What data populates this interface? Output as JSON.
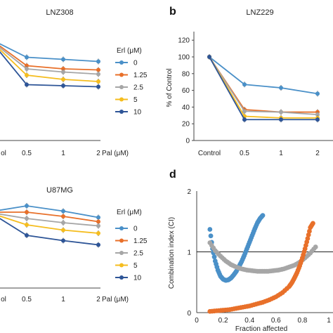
{
  "figure": {
    "panel_b_letter": "b",
    "panel_d_letter": "d",
    "palette": {
      "0": "#4a90c8",
      "1.25": "#e8702a",
      "2.5": "#a6a6a6",
      "5": "#f5bd1f",
      "10": "#2e5597",
      "axis": "#444444"
    }
  },
  "chart_data": [
    {
      "panel": "a-top",
      "type": "line",
      "title": "LNZ308",
      "categories": [
        "ol",
        "0.5",
        "1",
        "2"
      ],
      "x_axis_label": "Pal (μM)",
      "legend_title": "Erl (μM)",
      "legend_position": "right",
      "series": [
        {
          "name": "0",
          "values": [
            null,
            79,
            77,
            75
          ],
          "color": "#4a90c8"
        },
        {
          "name": "1.25",
          "values": [
            null,
            71,
            68,
            67
          ],
          "color": "#e8702a"
        },
        {
          "name": "2.5",
          "values": [
            null,
            68,
            65,
            63
          ],
          "color": "#a6a6a6"
        },
        {
          "name": "5",
          "values": [
            null,
            62,
            58,
            56
          ],
          "color": "#f5bd1f"
        },
        {
          "name": "10",
          "values": [
            null,
            53,
            52,
            51
          ],
          "color": "#2e5597"
        }
      ]
    },
    {
      "panel": "b",
      "type": "line",
      "title": "LNZ229",
      "categories": [
        "Control",
        "0.5",
        "1",
        "2"
      ],
      "y_axis_label": "% of Control",
      "y_ticks": [
        "0",
        "20",
        "40",
        "60",
        "80",
        "100",
        "120"
      ],
      "ylim": [
        0,
        120
      ],
      "series": [
        {
          "name": "0",
          "values": [
            100,
            67,
            63,
            56
          ],
          "color": "#4a90c8"
        },
        {
          "name": "1.25",
          "values": [
            100,
            37,
            34,
            34
          ],
          "color": "#e8702a"
        },
        {
          "name": "2.5",
          "values": [
            100,
            35,
            34,
            31
          ],
          "color": "#a6a6a6"
        },
        {
          "name": "5",
          "values": [
            100,
            29,
            27,
            27
          ],
          "color": "#f5bd1f"
        },
        {
          "name": "10",
          "values": [
            100,
            25,
            25,
            25
          ],
          "color": "#2e5597"
        }
      ]
    },
    {
      "panel": "c",
      "type": "line",
      "title": "U87MG",
      "categories": [
        "ol",
        "0.5",
        "1",
        "2"
      ],
      "x_axis_label": "Pal (μM)",
      "legend_title": "Erl (μM)",
      "legend_position": "right",
      "series": [
        {
          "name": "0",
          "values": [
            null,
            78,
            73,
            67
          ],
          "color": "#4a90c8"
        },
        {
          "name": "1.25",
          "values": [
            null,
            72,
            68,
            63
          ],
          "color": "#e8702a"
        },
        {
          "name": "2.5",
          "values": [
            null,
            66,
            62,
            59
          ],
          "color": "#a6a6a6"
        },
        {
          "name": "5",
          "values": [
            null,
            60,
            55,
            52
          ],
          "color": "#f5bd1f"
        },
        {
          "name": "10",
          "values": [
            null,
            50,
            45,
            41
          ],
          "color": "#2e5597"
        }
      ]
    },
    {
      "panel": "d",
      "type": "scatter",
      "x_axis_label": "Fraction affected",
      "y_axis_label": "Combination index (CI)",
      "x_ticks": [
        "0",
        "0.2",
        "0.4",
        "0.6",
        "0.8",
        "1"
      ],
      "y_ticks": [
        "0",
        "1",
        "2"
      ],
      "xlim": [
        0,
        1
      ],
      "ylim": [
        0,
        2
      ],
      "reference_line_y": 1,
      "series": [
        {
          "color": "#4a90c8",
          "x": [
            0.1,
            0.12,
            0.14,
            0.16,
            0.18,
            0.2,
            0.22,
            0.24,
            0.26,
            0.28,
            0.3,
            0.32,
            0.34,
            0.36,
            0.38,
            0.4,
            0.42,
            0.44,
            0.46,
            0.48,
            0.5
          ],
          "y": [
            1.37,
            1.05,
            0.85,
            0.7,
            0.6,
            0.55,
            0.53,
            0.54,
            0.57,
            0.62,
            0.68,
            0.76,
            0.84,
            0.94,
            1.05,
            1.16,
            1.27,
            1.38,
            1.48,
            1.55,
            1.6
          ]
        },
        {
          "color": "#a6a6a6",
          "x": [
            0.1,
            0.14,
            0.18,
            0.22,
            0.26,
            0.3,
            0.34,
            0.38,
            0.42,
            0.46,
            0.5,
            0.54,
            0.58,
            0.62,
            0.66,
            0.7,
            0.74,
            0.78,
            0.82,
            0.86,
            0.9
          ],
          "y": [
            1.15,
            1.02,
            0.93,
            0.85,
            0.79,
            0.75,
            0.72,
            0.7,
            0.69,
            0.68,
            0.68,
            0.68,
            0.69,
            0.7,
            0.72,
            0.75,
            0.78,
            0.83,
            0.9,
            0.98,
            1.08
          ]
        },
        {
          "color": "#e8702a",
          "x": [
            0.1,
            0.15,
            0.2,
            0.25,
            0.3,
            0.35,
            0.4,
            0.45,
            0.5,
            0.55,
            0.6,
            0.65,
            0.7,
            0.72,
            0.74,
            0.76,
            0.78,
            0.8,
            0.82,
            0.84,
            0.86,
            0.88
          ],
          "y": [
            0.02,
            0.03,
            0.04,
            0.05,
            0.07,
            0.09,
            0.11,
            0.14,
            0.17,
            0.21,
            0.26,
            0.33,
            0.43,
            0.49,
            0.57,
            0.66,
            0.77,
            0.9,
            1.05,
            1.22,
            1.4,
            1.47
          ]
        }
      ]
    }
  ]
}
